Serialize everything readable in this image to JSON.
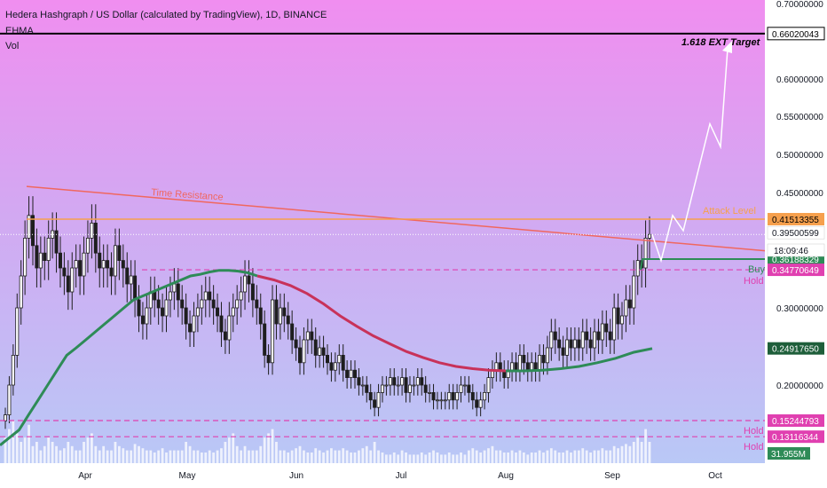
{
  "header": {
    "title": "Hedera Hashgraph / US Dollar (calculated by TradingView), 1D, BINANCE",
    "indicator1": "EHMA",
    "indicator2": "Vol"
  },
  "colors": {
    "background_top": "#f08ef0",
    "background_bottom": "#b9c8f6",
    "candle": "#1e1e1e",
    "trendline": "#f0675f",
    "attack_line": "#f6a04d",
    "ema_green": "#2e8b57",
    "ema_red": "#c8325a",
    "dashed_pink": "#e040b0",
    "buy_green": "#2e8b57",
    "projection": "#ffffff"
  },
  "chart_data": {
    "type": "candlestick",
    "symbol": "HBARUSD",
    "timeframe": "1D",
    "ylim": [
      0.1,
      0.7
    ],
    "y_ticks": [
      "0.70000000",
      "0.60000000",
      "0.55000000",
      "0.50000000",
      "0.45000000",
      "0.30000000",
      "0.20000000"
    ],
    "x_ticks": [
      "Apr",
      "May",
      "Jun",
      "Jul",
      "Aug",
      "Sep",
      "Oct"
    ],
    "levels": [
      {
        "label": "0.66020043",
        "value": 0.6602
      },
      {
        "label": "0.41513355",
        "value": 0.4151
      },
      {
        "label": "0.39500599",
        "value": 0.395
      },
      {
        "label": "0.36188329",
        "value": 0.3619
      },
      {
        "label": "0.34770649",
        "value": 0.3477
      },
      {
        "label": "0.24917650",
        "value": 0.2492
      },
      {
        "label": "0.15244793",
        "value": 0.1524
      },
      {
        "label": "0.13116344",
        "value": 0.1312
      }
    ],
    "countdown": "18:09:46",
    "volume_label": "31.955M",
    "annotations": {
      "ext_target": "1.618 EXT Target",
      "attack_level": "Attack Level",
      "time_resistance": "Time Resistance",
      "buy": "Buy",
      "hold_upper": "Hold",
      "hold_lower_1": "Hold",
      "hold_lower_2": "Hold"
    },
    "projection_path": [
      0.395,
      0.36,
      0.42,
      0.4,
      0.54,
      0.51,
      0.64
    ],
    "candle_closes": [
      0.16,
      0.2,
      0.24,
      0.3,
      0.34,
      0.39,
      0.42,
      0.38,
      0.35,
      0.37,
      0.36,
      0.39,
      0.4,
      0.37,
      0.35,
      0.34,
      0.32,
      0.35,
      0.36,
      0.34,
      0.37,
      0.39,
      0.41,
      0.37,
      0.35,
      0.36,
      0.35,
      0.34,
      0.38,
      0.36,
      0.35,
      0.33,
      0.34,
      0.31,
      0.29,
      0.28,
      0.3,
      0.32,
      0.31,
      0.3,
      0.29,
      0.31,
      0.32,
      0.33,
      0.31,
      0.3,
      0.28,
      0.27,
      0.29,
      0.3,
      0.31,
      0.32,
      0.31,
      0.3,
      0.29,
      0.27,
      0.26,
      0.29,
      0.3,
      0.31,
      0.32,
      0.34,
      0.33,
      0.31,
      0.3,
      0.28,
      0.24,
      0.23,
      0.31,
      0.28,
      0.3,
      0.29,
      0.28,
      0.26,
      0.25,
      0.23,
      0.26,
      0.27,
      0.26,
      0.24,
      0.25,
      0.24,
      0.23,
      0.22,
      0.23,
      0.24,
      0.22,
      0.21,
      0.22,
      0.21,
      0.2,
      0.2,
      0.19,
      0.18,
      0.17,
      0.19,
      0.2,
      0.2,
      0.21,
      0.2,
      0.2,
      0.21,
      0.19,
      0.2,
      0.2,
      0.21,
      0.2,
      0.19,
      0.19,
      0.18,
      0.18,
      0.18,
      0.18,
      0.19,
      0.18,
      0.19,
      0.2,
      0.2,
      0.19,
      0.18,
      0.17,
      0.18,
      0.19,
      0.21,
      0.22,
      0.23,
      0.22,
      0.21,
      0.22,
      0.23,
      0.22,
      0.24,
      0.23,
      0.22,
      0.23,
      0.22,
      0.24,
      0.23,
      0.25,
      0.27,
      0.26,
      0.25,
      0.24,
      0.26,
      0.25,
      0.26,
      0.25,
      0.27,
      0.26,
      0.25,
      0.27,
      0.26,
      0.28,
      0.27,
      0.26,
      0.3,
      0.28,
      0.29,
      0.31,
      0.3,
      0.34,
      0.36,
      0.35,
      0.39,
      0.395
    ],
    "ema_green": [
      0.12,
      0.13,
      0.14,
      0.16,
      0.18,
      0.2,
      0.22,
      0.24,
      0.25,
      0.26,
      0.27,
      0.28,
      0.29,
      0.3,
      0.31,
      0.315,
      0.32,
      0.325,
      0.33,
      0.335,
      0.34,
      0.342,
      0.345,
      0.347,
      0.347,
      0.346,
      0.344,
      0.34
    ],
    "ema_red": [
      0.34,
      0.335,
      0.328,
      0.318,
      0.305,
      0.29,
      0.277,
      0.265,
      0.255,
      0.245,
      0.237,
      0.23,
      0.225,
      0.222,
      0.22,
      0.219
    ],
    "ema_green_tail": [
      0.219,
      0.219,
      0.22,
      0.222,
      0.225,
      0.23,
      0.236,
      0.244,
      0.249
    ],
    "trendline": [
      [
        0,
        0.458
      ],
      [
        1,
        0.385
      ]
    ],
    "attack_level": 0.4151,
    "volumes": [
      0.6,
      0.8,
      1.0,
      0.7,
      0.5,
      0.6,
      0.9,
      0.4,
      0.5,
      0.3,
      0.4,
      0.6,
      0.5,
      0.4,
      0.3,
      0.35,
      0.5,
      0.4,
      0.3,
      0.3,
      0.5,
      0.6,
      0.7,
      0.4,
      0.3,
      0.4,
      0.3,
      0.3,
      0.5,
      0.4,
      0.35,
      0.3,
      0.3,
      0.45,
      0.4,
      0.35,
      0.3,
      0.3,
      0.25,
      0.3,
      0.35,
      0.25,
      0.3,
      0.3,
      0.3,
      0.3,
      0.5,
      0.4,
      0.3,
      0.3,
      0.25,
      0.25,
      0.3,
      0.25,
      0.3,
      0.35,
      0.5,
      0.6,
      0.7,
      0.4,
      0.3,
      0.4,
      0.3,
      0.3,
      0.3,
      0.4,
      0.6,
      0.7,
      0.8,
      0.5,
      0.3,
      0.3,
      0.25,
      0.3,
      0.35,
      0.4,
      0.3,
      0.25,
      0.25,
      0.35,
      0.3,
      0.25,
      0.3,
      0.35,
      0.3,
      0.3,
      0.35,
      0.3,
      0.25,
      0.25,
      0.3,
      0.35,
      0.4,
      0.3,
      0.5,
      0.3,
      0.25,
      0.2,
      0.2,
      0.25,
      0.2,
      0.3,
      0.25,
      0.2,
      0.2,
      0.2,
      0.25,
      0.2,
      0.25,
      0.3,
      0.25,
      0.2,
      0.2,
      0.25,
      0.2,
      0.2,
      0.25,
      0.2,
      0.3,
      0.35,
      0.3,
      0.25,
      0.3,
      0.35,
      0.4,
      0.3,
      0.3,
      0.25,
      0.25,
      0.3,
      0.25,
      0.3,
      0.25,
      0.2,
      0.25,
      0.25,
      0.3,
      0.25,
      0.3,
      0.35,
      0.3,
      0.25,
      0.25,
      0.3,
      0.25,
      0.3,
      0.3,
      0.35,
      0.3,
      0.25,
      0.3,
      0.3,
      0.35,
      0.3,
      0.3,
      0.4,
      0.35,
      0.4,
      0.45,
      0.4,
      0.5,
      0.6,
      0.5,
      0.8,
      0.5
    ]
  }
}
